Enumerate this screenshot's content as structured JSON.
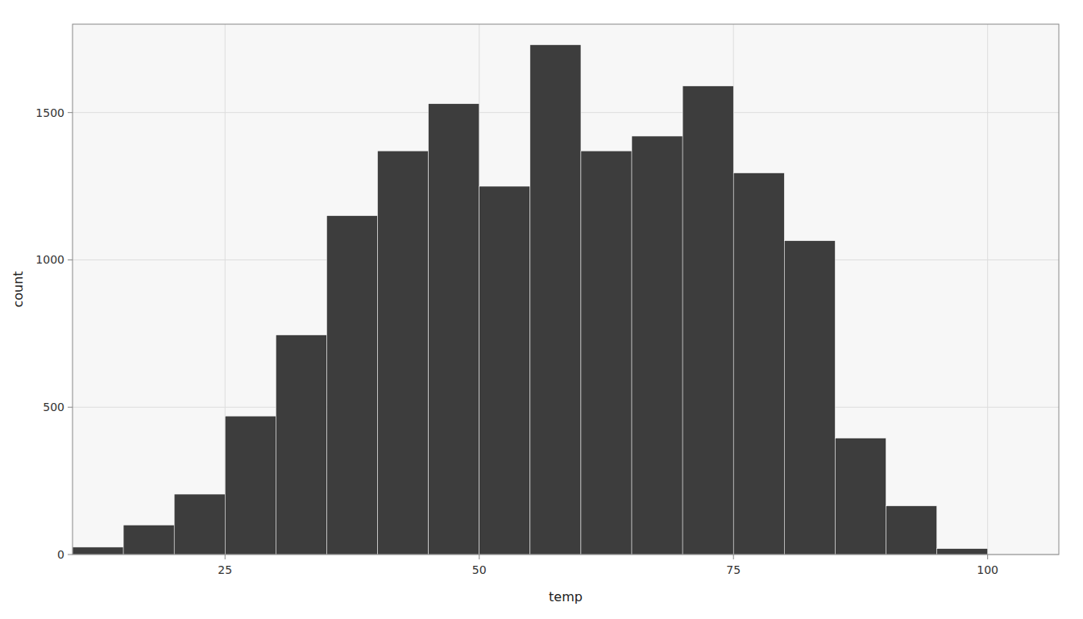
{
  "chart_data": {
    "type": "histogram",
    "xlabel": "temp",
    "ylabel": "count",
    "color": "#3d3d3d",
    "bins": [
      10.0,
      15.0,
      20.0,
      25.0,
      30.0,
      35.0,
      40.0,
      45.0,
      50.0,
      55.0,
      60.0,
      65.0,
      70.0,
      75.0,
      80.0,
      85.0,
      90.0,
      95.0,
      100.0
    ],
    "values": [
      25,
      100,
      205,
      470,
      745,
      1150,
      1370,
      1530,
      1250,
      1730,
      1370,
      1420,
      1590,
      1295,
      1065,
      395,
      165,
      20
    ],
    "xlim": [
      10.0,
      107.0
    ],
    "ylim": [
      0,
      1800
    ],
    "xticks": [
      25,
      50,
      75,
      100
    ],
    "yticks": [
      0,
      500,
      1000,
      1500
    ],
    "grid": true
  }
}
